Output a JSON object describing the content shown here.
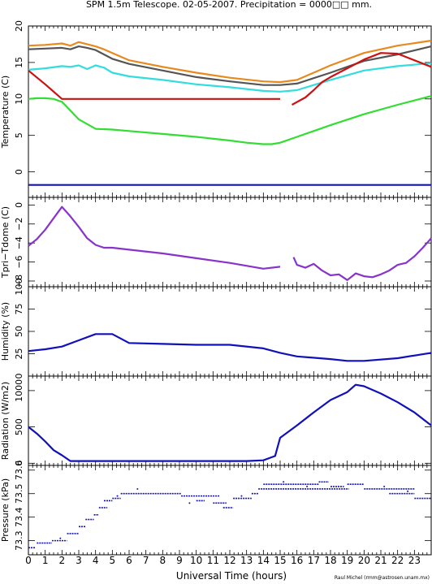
{
  "figure": {
    "title": "SPM 1.5m Telescope. 02-05-2007. Precipitation = 0000□□ mm.",
    "xlabel": "Universal Time (hours)",
    "credit": "Raul Michel (rmm@astrosen.unam.mx)"
  },
  "colors": {
    "orange": "#e8891e",
    "gray": "#555555",
    "cyan": "#33dddd",
    "red": "#cc1111",
    "green": "#33dd33",
    "blue": "#1111bb",
    "purple": "#8833cc"
  },
  "chart_data": [
    {
      "id": "temperature",
      "type": "line",
      "ylabel": "Temperature (C)",
      "xlim": [
        0,
        24
      ],
      "ylim": [
        -3.5,
        20
      ],
      "yticks": [
        0,
        5,
        10,
        15,
        20
      ],
      "x_ticks": [
        "0",
        "1",
        "2",
        "3",
        "4",
        "5",
        "6",
        "7",
        "8",
        "9",
        "10",
        "11",
        "12",
        "13",
        "14",
        "15",
        "16",
        "17",
        "18",
        "19",
        "20",
        "21",
        "22",
        "23"
      ],
      "series": [
        {
          "color": "orange",
          "x": [
            0,
            1,
            2,
            2.5,
            3,
            3.5,
            4,
            4.5,
            5,
            6,
            8,
            10,
            12,
            14,
            15,
            16,
            18,
            20,
            22,
            24
          ],
          "y": [
            17.3,
            17.4,
            17.6,
            17.3,
            17.8,
            17.5,
            17.2,
            16.8,
            16.3,
            15.3,
            14.4,
            13.6,
            12.9,
            12.4,
            12.3,
            12.6,
            14.6,
            16.3,
            17.3,
            18.0
          ]
        },
        {
          "color": "gray",
          "x": [
            0,
            1,
            2,
            2.5,
            3,
            3.5,
            4,
            4.5,
            5,
            6,
            8,
            10,
            12,
            14,
            15,
            16,
            18,
            20,
            22,
            24
          ],
          "y": [
            16.8,
            16.9,
            17.0,
            16.8,
            17.2,
            17.0,
            16.7,
            16.1,
            15.5,
            14.8,
            13.9,
            13.0,
            12.4,
            11.9,
            11.9,
            12.1,
            13.6,
            15.2,
            16.1,
            17.2
          ]
        },
        {
          "color": "cyan",
          "x": [
            0,
            1,
            2,
            2.5,
            3,
            3.5,
            4,
            4.5,
            5,
            6,
            8,
            10,
            12,
            14,
            15,
            16,
            18,
            20,
            22,
            24
          ],
          "y": [
            14.0,
            14.2,
            14.5,
            14.4,
            14.6,
            14.1,
            14.6,
            14.3,
            13.6,
            13.1,
            12.6,
            12.0,
            11.6,
            11.1,
            11.0,
            11.2,
            12.6,
            13.9,
            14.5,
            14.9
          ]
        },
        {
          "color": "red",
          "x": [
            0,
            1,
            2,
            3,
            4,
            6,
            8,
            10,
            12,
            14,
            15
          ],
          "y": [
            13.9,
            12.0,
            10.0,
            10.0,
            10.0,
            10.0,
            10.0,
            10.0,
            10.0,
            10.0,
            10.0
          ]
        },
        {
          "color": "red",
          "x": [
            15.7,
            16.5,
            17,
            17.5,
            18,
            18.5,
            19,
            20,
            21,
            22,
            23,
            24
          ],
          "y": [
            9.2,
            10.2,
            11.2,
            12.3,
            13.0,
            13.6,
            14.2,
            15.4,
            16.3,
            16.2,
            15.3,
            14.4
          ]
        },
        {
          "color": "green",
          "x": [
            0,
            0.5,
            1,
            1.5,
            2,
            2.5,
            3,
            4,
            5,
            6,
            8,
            10,
            12,
            13,
            14,
            14.5,
            15,
            16,
            18,
            20,
            22,
            24
          ],
          "y": [
            10.0,
            10.1,
            10.1,
            10.0,
            9.6,
            8.4,
            7.2,
            5.9,
            5.8,
            5.6,
            5.2,
            4.8,
            4.3,
            4.0,
            3.8,
            3.8,
            4.0,
            4.8,
            6.4,
            7.9,
            9.2,
            10.4
          ]
        },
        {
          "color": "blue",
          "x": [
            0,
            4,
            8,
            12,
            16,
            20,
            24
          ],
          "y": [
            -1.8,
            -1.8,
            -1.8,
            -1.8,
            -1.8,
            -1.8,
            -1.8
          ]
        }
      ]
    },
    {
      "id": "tpri",
      "type": "line",
      "ylabel": "Tpri−Tdome (C)",
      "xlim": [
        0,
        24
      ],
      "ylim": [
        -8.6,
        0.8
      ],
      "yticks": [
        0,
        -2,
        -4,
        -6,
        -8
      ],
      "ytick_labels": [
        "0",
        "−2",
        "−4",
        "−6",
        "−8"
      ],
      "x_ticks": [],
      "series": [
        {
          "color": "purple",
          "x": [
            0,
            0.5,
            1,
            1.5,
            2,
            2.5,
            3,
            3.5,
            4,
            4.5,
            5,
            6,
            8,
            10,
            12,
            14,
            15
          ],
          "y": [
            -4.3,
            -3.6,
            -2.6,
            -1.4,
            -0.2,
            -1.2,
            -2.3,
            -3.5,
            -4.2,
            -4.5,
            -4.5,
            -4.7,
            -5.1,
            -5.6,
            -6.1,
            -6.7,
            -6.5
          ]
        },
        {
          "color": "purple",
          "x": [
            15.8,
            16,
            16.5,
            17,
            17.5,
            18,
            18.5,
            19,
            19.5,
            20,
            20.5,
            21,
            21.5,
            22,
            22.5,
            23,
            23.5,
            24
          ],
          "y": [
            -5.5,
            -6.3,
            -6.6,
            -6.2,
            -6.9,
            -7.4,
            -7.3,
            -7.9,
            -7.2,
            -7.5,
            -7.6,
            -7.3,
            -6.9,
            -6.3,
            -6.1,
            -5.4,
            -4.5,
            -3.5
          ]
        }
      ]
    },
    {
      "id": "humidity",
      "type": "line",
      "ylabel": "Humidity (%)",
      "xlim": [
        0,
        24
      ],
      "ylim": [
        0,
        100
      ],
      "yticks": [
        0,
        25,
        50,
        75,
        100
      ],
      "x_ticks": [],
      "series": [
        {
          "color": "blue",
          "x": [
            0,
            1,
            2,
            3,
            4,
            5,
            5.5,
            6,
            8,
            10,
            12,
            14,
            15,
            16,
            18,
            19,
            20,
            22,
            24
          ],
          "y": [
            28,
            30,
            33,
            40,
            47,
            47,
            42,
            37,
            36,
            35,
            35,
            31,
            26,
            22,
            19,
            17,
            17,
            20,
            26
          ]
        }
      ]
    },
    {
      "id": "radiation",
      "type": "line",
      "ylabel": "Radiation (W/m2)",
      "xlim": [
        0,
        24
      ],
      "ylim": [
        -30,
        1200
      ],
      "yticks": [
        0,
        500,
        1000
      ],
      "x_ticks": [],
      "series": [
        {
          "color": "blue",
          "x": [
            0,
            0.5,
            1,
            1.5,
            2,
            2.5,
            3,
            5,
            8,
            10,
            12,
            13,
            14,
            14.7,
            15,
            16,
            17,
            18,
            19,
            19.5,
            20,
            21,
            22,
            23,
            24
          ],
          "y": [
            500,
            410,
            300,
            180,
            110,
            30,
            30,
            30,
            30,
            30,
            30,
            30,
            40,
            100,
            350,
            520,
            700,
            870,
            980,
            1080,
            1060,
            960,
            840,
            700,
            520
          ]
        }
      ]
    },
    {
      "id": "pressure",
      "type": "scatter",
      "ylabel": "Pressure (kPa)",
      "xlim": [
        0,
        24
      ],
      "ylim": [
        73.24,
        73.62
      ],
      "yticks": [
        73.3,
        73.4,
        73.5,
        73.6
      ],
      "x_ticks": [
        "0",
        "1",
        "2",
        "3",
        "4",
        "5",
        "6",
        "7",
        "8",
        "9",
        "10",
        "11",
        "12",
        "13",
        "14",
        "15",
        "16",
        "17",
        "18",
        "19",
        "20",
        "21",
        "22",
        "23"
      ],
      "segments": [
        {
          "x0": 0.0,
          "x1": 0.4,
          "y": 73.27
        },
        {
          "x0": 0.5,
          "x1": 1.4,
          "y": 73.29
        },
        {
          "x0": 1.4,
          "x1": 2.3,
          "y": 73.3
        },
        {
          "x0": 2.3,
          "x1": 3.0,
          "y": 73.33
        },
        {
          "x0": 3.0,
          "x1": 3.4,
          "y": 73.36
        },
        {
          "x0": 3.4,
          "x1": 3.9,
          "y": 73.39
        },
        {
          "x0": 3.9,
          "x1": 4.2,
          "y": 73.41
        },
        {
          "x0": 4.2,
          "x1": 4.7,
          "y": 73.44
        },
        {
          "x0": 4.5,
          "x1": 5.0,
          "y": 73.47
        },
        {
          "x0": 5.0,
          "x1": 5.5,
          "y": 73.48
        },
        {
          "x0": 5.5,
          "x1": 9.1,
          "y": 73.5
        },
        {
          "x0": 9.1,
          "x1": 11.4,
          "y": 73.49
        },
        {
          "x0": 10.0,
          "x1": 10.5,
          "y": 73.47
        },
        {
          "x0": 11.0,
          "x1": 11.8,
          "y": 73.46
        },
        {
          "x0": 11.6,
          "x1": 12.2,
          "y": 73.44
        },
        {
          "x0": 12.2,
          "x1": 13.3,
          "y": 73.48
        },
        {
          "x0": 13.3,
          "x1": 13.7,
          "y": 73.5
        },
        {
          "x0": 13.7,
          "x1": 19.1,
          "y": 73.52
        },
        {
          "x0": 14.0,
          "x1": 17.3,
          "y": 73.54
        },
        {
          "x0": 17.3,
          "x1": 17.9,
          "y": 73.55
        },
        {
          "x0": 18.0,
          "x1": 18.8,
          "y": 73.53
        },
        {
          "x0": 19.0,
          "x1": 20.0,
          "y": 73.54
        },
        {
          "x0": 20.0,
          "x1": 23.0,
          "y": 73.52
        },
        {
          "x0": 21.5,
          "x1": 23.0,
          "y": 73.5
        },
        {
          "x0": 23.0,
          "x1": 24.0,
          "y": 73.48
        }
      ],
      "markers": [
        {
          "x": 1.9,
          "y": 73.31
        },
        {
          "x": 5.3,
          "y": 73.49
        },
        {
          "x": 6.5,
          "y": 73.52
        },
        {
          "x": 9.6,
          "y": 73.46
        },
        {
          "x": 12.7,
          "y": 73.49
        },
        {
          "x": 15.2,
          "y": 73.55
        },
        {
          "x": 16.6,
          "y": 73.53
        },
        {
          "x": 21.2,
          "y": 73.53
        },
        {
          "x": 22.6,
          "y": 73.51
        }
      ]
    }
  ]
}
